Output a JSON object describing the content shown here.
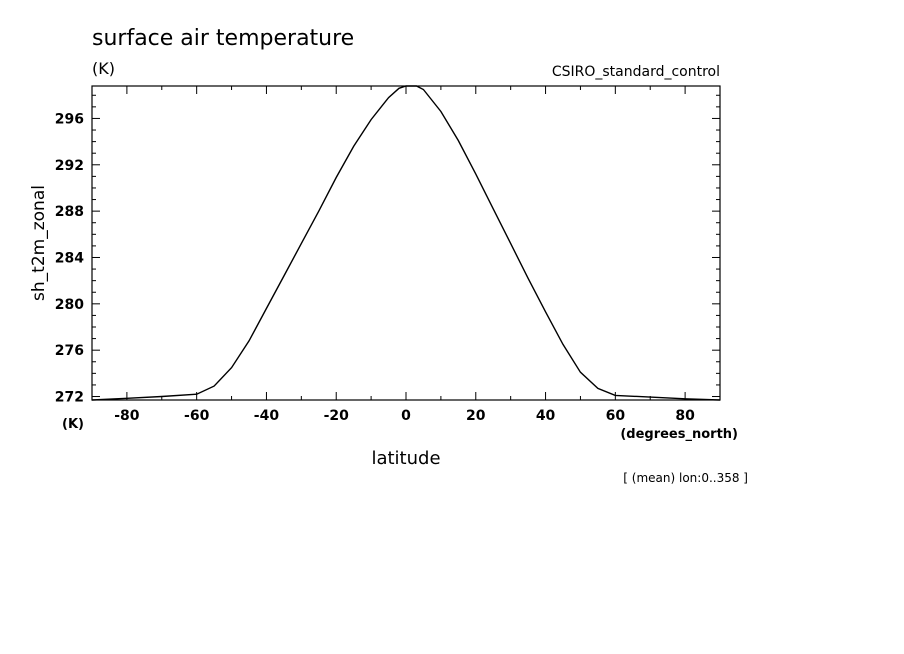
{
  "chart_data": {
    "type": "line",
    "title": "surface air temperature",
    "units": "(K)",
    "source": "CSIRO_standard_control",
    "xlabel": "latitude",
    "xunits": "(degrees_north)",
    "ylabel": "sh_t2m_zonal",
    "yunits": "(K)",
    "note": "[ (mean) lon:0..358 ]",
    "xlim": [
      -90,
      90
    ],
    "ylim": [
      271.7,
      298.8
    ],
    "xticks": [
      -80,
      -60,
      -40,
      -20,
      0,
      20,
      40,
      60,
      80
    ],
    "xtick_labels": [
      "-80",
      "-60",
      "-40",
      "-20",
      "0",
      "20",
      "40",
      "60",
      "80"
    ],
    "yticks": [
      272,
      276,
      280,
      284,
      288,
      292,
      296
    ],
    "ytick_labels": [
      "272",
      "276",
      "280",
      "284",
      "288",
      "292",
      "296"
    ],
    "grid": false,
    "series": [
      {
        "x": [
          -90,
          -80,
          -70,
          -60,
          -55,
          -50,
          -45,
          -40,
          -35,
          -30,
          -25,
          -20,
          -15,
          -10,
          -5,
          -2,
          0,
          3,
          5,
          10,
          15,
          20,
          25,
          30,
          35,
          40,
          45,
          50,
          55,
          60,
          70,
          80,
          90
        ],
        "y": [
          271.7,
          271.85,
          272.0,
          272.2,
          272.9,
          274.5,
          276.8,
          279.6,
          282.4,
          285.2,
          288.0,
          290.9,
          293.6,
          295.9,
          297.8,
          298.6,
          298.8,
          298.8,
          298.5,
          296.6,
          294.1,
          291.2,
          288.2,
          285.2,
          282.2,
          279.3,
          276.5,
          274.1,
          272.7,
          272.1,
          271.95,
          271.8,
          271.7
        ]
      }
    ]
  }
}
